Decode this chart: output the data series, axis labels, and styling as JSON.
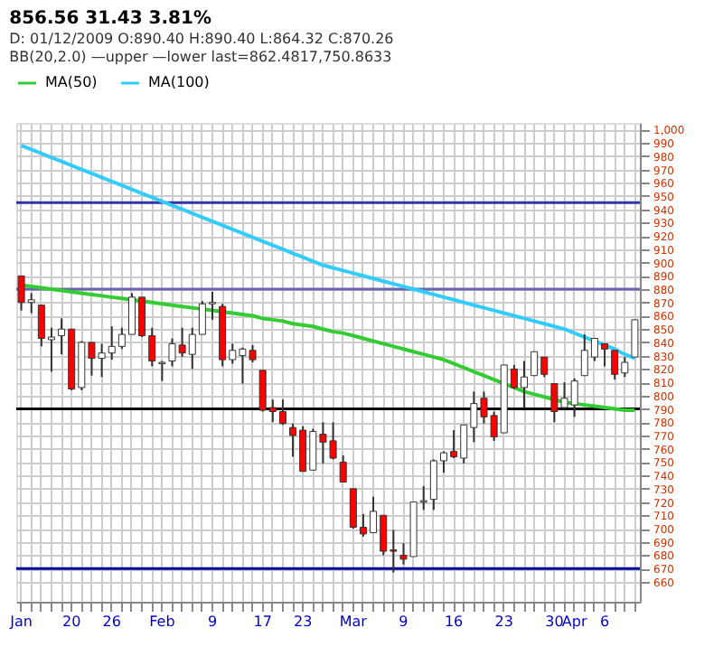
{
  "chart_data": {
    "type": "candlestick",
    "title": "856.56  31.43  3.81%",
    "subtitle": "D: 01/12/2009 O:890.40 H:890.40 L:864.32 C:870.26",
    "annotations": [
      "BB(20,2.0) —upper —lower last=862.4817,750.8633"
    ],
    "categories": [
      "Jan",
      null,
      null,
      null,
      null,
      "20",
      null,
      null,
      null,
      "26",
      null,
      null,
      null,
      null,
      "Feb",
      null,
      null,
      null,
      null,
      "9",
      null,
      null,
      null,
      null,
      "17",
      null,
      null,
      null,
      "23",
      null,
      null,
      null,
      null,
      "Mar",
      null,
      null,
      null,
      null,
      "9",
      null,
      null,
      null,
      null,
      "16",
      null,
      null,
      null,
      null,
      "23",
      null,
      null,
      null,
      null,
      "30",
      null,
      "Apr",
      null,
      null,
      "6",
      null,
      null,
      null
    ],
    "ohlc": [
      [
        890,
        890,
        864,
        870
      ],
      [
        870,
        877,
        862,
        872
      ],
      [
        868,
        868,
        837,
        843
      ],
      [
        842,
        851,
        818,
        844
      ],
      [
        845,
        858,
        831,
        850
      ],
      [
        850,
        850,
        804,
        805
      ],
      [
        806,
        841,
        804,
        840
      ],
      [
        840,
        840,
        815,
        828
      ],
      [
        828,
        839,
        814,
        832
      ],
      [
        832,
        852,
        827,
        837
      ],
      [
        837,
        851,
        835,
        846
      ],
      [
        846,
        877,
        846,
        874
      ],
      [
        874,
        874,
        844,
        845
      ],
      [
        845,
        851,
        822,
        826
      ],
      [
        824,
        826,
        811,
        825
      ],
      [
        826,
        843,
        822,
        839
      ],
      [
        838,
        851,
        829,
        832
      ],
      [
        831,
        851,
        820,
        846
      ],
      [
        846,
        871,
        846,
        869
      ],
      [
        869,
        878,
        857,
        870
      ],
      [
        867,
        869,
        822,
        827
      ],
      [
        827,
        839,
        824,
        834
      ],
      [
        830,
        836,
        809,
        835
      ],
      [
        834,
        838,
        825,
        827
      ],
      [
        819,
        819,
        788,
        789
      ],
      [
        791,
        797,
        780,
        788
      ],
      [
        788,
        797,
        778,
        779
      ],
      [
        776,
        779,
        754,
        770
      ],
      [
        774,
        777,
        743,
        743
      ],
      [
        744,
        775,
        744,
        773
      ],
      [
        771,
        780,
        749,
        765
      ],
      [
        766,
        780,
        752,
        753
      ],
      [
        750,
        755,
        735,
        735
      ],
      [
        730,
        730,
        700,
        701
      ],
      [
        701,
        711,
        694,
        696
      ],
      [
        697,
        724,
        697,
        713
      ],
      [
        710,
        710,
        680,
        683
      ],
      [
        684,
        699,
        667,
        683
      ],
      [
        680,
        689,
        673,
        677
      ],
      [
        679,
        720,
        679,
        720
      ],
      [
        720,
        732,
        714,
        721
      ],
      [
        722,
        752,
        714,
        751
      ],
      [
        751,
        758,
        742,
        757
      ],
      [
        758,
        774,
        753,
        754
      ],
      [
        753,
        778,
        749,
        778
      ],
      [
        776,
        803,
        765,
        794
      ],
      [
        798,
        803,
        779,
        784
      ],
      [
        785,
        788,
        766,
        769
      ],
      [
        772,
        823,
        772,
        823
      ],
      [
        820,
        823,
        805,
        806
      ],
      [
        806,
        826,
        791,
        814
      ],
      [
        815,
        833,
        815,
        833
      ],
      [
        829,
        829,
        814,
        816
      ],
      [
        809,
        809,
        780,
        788
      ],
      [
        791,
        810,
        791,
        798
      ],
      [
        793,
        813,
        784,
        811
      ],
      [
        815,
        846,
        815,
        834
      ],
      [
        829,
        843,
        826,
        843
      ],
      [
        839,
        839,
        822,
        835
      ],
      [
        834,
        834,
        812,
        816
      ],
      [
        817,
        829,
        814,
        825
      ],
      [
        829,
        857,
        829,
        857
      ]
    ],
    "colors": [
      "#ff0000",
      "#ffffff",
      "#ff0000",
      "#ffffff",
      "#ffffff",
      "#ff0000",
      "#ffffff",
      "#ff0000",
      "#ffffff",
      "#ffffff",
      "#ffffff",
      "#ffffff",
      "#ff0000",
      "#ff0000",
      "#ffffff",
      "#ffffff",
      "#ff0000",
      "#ffffff",
      "#ffffff",
      "#ffffff",
      "#ff0000",
      "#ffffff",
      "#ffffff",
      "#ff0000",
      "#ff0000",
      "#ff0000",
      "#ff0000",
      "#ff0000",
      "#ff0000",
      "#ffffff",
      "#ff0000",
      "#ff0000",
      "#ff0000",
      "#ff0000",
      "#ff0000",
      "#ffffff",
      "#ff0000",
      "#ff0000",
      "#ff0000",
      "#ffffff",
      "#ffffff",
      "#ffffff",
      "#ffffff",
      "#ff0000",
      "#ffffff",
      "#ffffff",
      "#ff0000",
      "#ff0000",
      "#ffffff",
      "#ff0000",
      "#ffffff",
      "#ffffff",
      "#ff0000",
      "#ff0000",
      "#ffffff",
      "#ffffff",
      "#ffffff",
      "#ffffff",
      "#ff0000",
      "#ff0000",
      "#ffffff",
      "#ffffff"
    ],
    "series": [
      {
        "name": "MA(50)",
        "type": "line",
        "color": "#33cc33",
        "values": [
          883,
          882,
          881,
          880,
          879,
          878,
          877,
          876,
          875,
          874,
          873,
          872,
          871,
          870,
          869,
          868,
          867,
          866,
          865,
          864,
          863,
          862,
          861,
          860,
          858,
          857,
          856,
          854,
          853,
          852,
          850,
          848,
          847,
          845,
          843,
          841,
          839,
          837,
          835,
          833,
          831,
          829,
          827,
          824,
          821,
          818,
          815,
          812,
          809,
          806,
          803,
          801,
          799,
          797,
          795,
          794,
          793,
          792,
          791,
          790,
          789,
          789
        ]
      },
      {
        "name": "MA(100)",
        "type": "line",
        "color": "#33ccff",
        "values": [
          988,
          985,
          982,
          979,
          976,
          973,
          970,
          967,
          964,
          961,
          958,
          955,
          952,
          949,
          946,
          943,
          940,
          937,
          934,
          931,
          928,
          925,
          922,
          919,
          916,
          913,
          910,
          907,
          904,
          901,
          898,
          896,
          894,
          892,
          890,
          888,
          886,
          884,
          882,
          880,
          878,
          876,
          874,
          872,
          870,
          868,
          866,
          864,
          862,
          860,
          858,
          856,
          854,
          852,
          850,
          847,
          844,
          841,
          838,
          835,
          831,
          828
        ]
      }
    ],
    "ylim": [
      645,
      1005
    ],
    "yticks": [
      660,
      670,
      680,
      690,
      700,
      710,
      720,
      730,
      740,
      750,
      760,
      770,
      780,
      790,
      800,
      810,
      820,
      830,
      840,
      850,
      860,
      870,
      880,
      890,
      900,
      910,
      920,
      930,
      940,
      950,
      960,
      970,
      980,
      990,
      {
        "value": 1000,
        "label": "1,000"
      }
    ],
    "ref_lines": [
      {
        "axis": "y",
        "value": 945,
        "color": "#3333aa"
      },
      {
        "axis": "y",
        "value": 880,
        "color": "#6666aa"
      },
      {
        "axis": "y",
        "value": 790,
        "color": "#000000"
      },
      {
        "axis": "y",
        "value": 670,
        "color": "#000099"
      }
    ],
    "grid": true,
    "legend": "top"
  }
}
